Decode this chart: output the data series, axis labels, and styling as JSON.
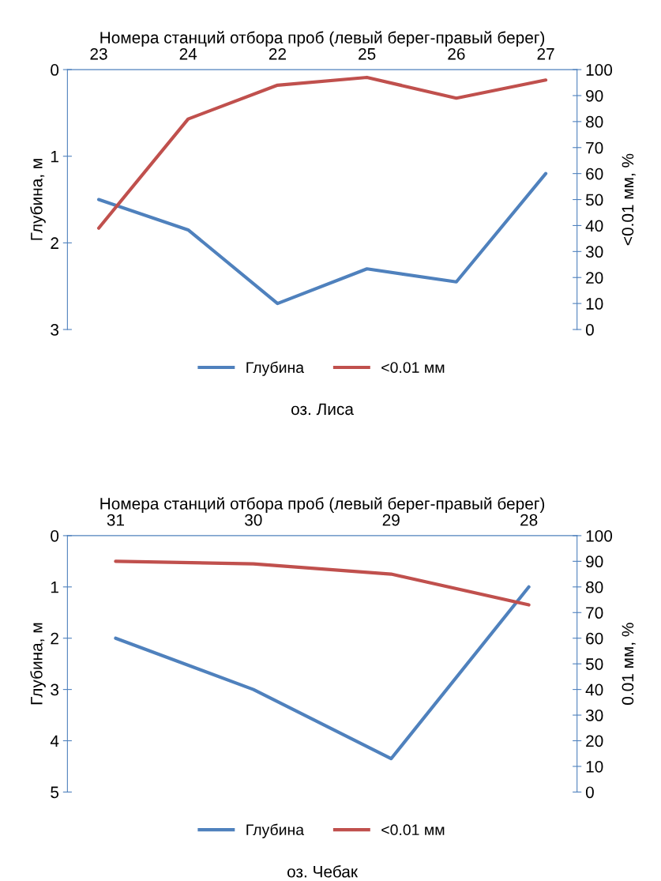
{
  "chart_data": [
    {
      "type": "line",
      "xlabel": "Номера станций отбора проб (левый берег-правый берег)",
      "ylabel": "Глубина, м",
      "y2label": "<0.01 мм, %",
      "categories": [
        "23",
        "24",
        "22",
        "25",
        "26",
        "27"
      ],
      "series": [
        {
          "name": "Глубина",
          "color": "#4f81bd",
          "values": [
            1.5,
            1.85,
            2.7,
            2.3,
            2.45,
            1.2
          ]
        },
        {
          "name": "<0.01 мм",
          "color": "#c0504d",
          "axis": "y2",
          "values": [
            39,
            81,
            94,
            97,
            89,
            96
          ]
        }
      ],
      "ylim": [
        3,
        0
      ],
      "yticks": [
        0,
        1,
        2,
        3
      ],
      "y2lim": [
        0,
        100
      ],
      "y2ticks": [
        0,
        10,
        20,
        30,
        40,
        50,
        60,
        70,
        80,
        90,
        100
      ],
      "legend": "bottom",
      "grid": false,
      "annotations": [
        "оз. Лиса"
      ]
    },
    {
      "type": "line",
      "xlabel": "Номера станций отбора проб (левый берег-правый берег)",
      "ylabel": "Глубина, м",
      "y2label": "0.01 мм, %",
      "categories": [
        "31",
        "30",
        "29",
        "28"
      ],
      "series": [
        {
          "name": "Глубина",
          "color": "#4f81bd",
          "values": [
            2.0,
            3.0,
            4.35,
            1.0
          ]
        },
        {
          "name": "<0.01 мм",
          "color": "#c0504d",
          "axis": "y2",
          "values": [
            90,
            89,
            85,
            73
          ]
        }
      ],
      "ylim": [
        5,
        0
      ],
      "yticks": [
        0,
        1,
        2,
        3,
        4,
        5
      ],
      "y2lim": [
        0,
        100
      ],
      "y2ticks": [
        0,
        10,
        20,
        30,
        40,
        50,
        60,
        70,
        80,
        90,
        100
      ],
      "legend": "bottom",
      "grid": false,
      "annotations": [
        "оз. Чебак"
      ]
    }
  ]
}
